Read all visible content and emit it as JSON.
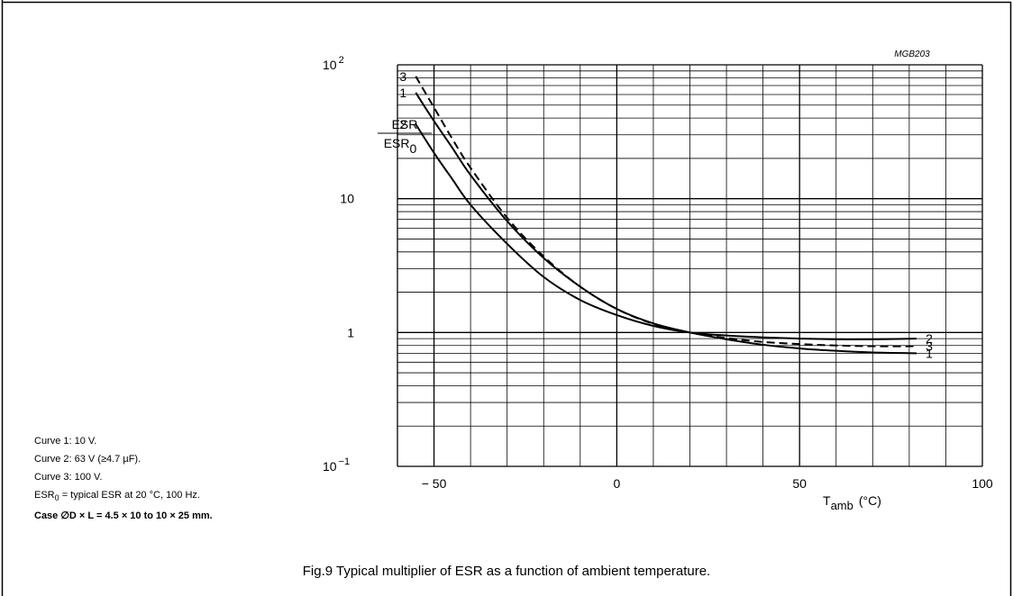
{
  "figure_id": "MGB203",
  "caption": "Fig.9  Typical multiplier of ESR as a function of ambient temperature.",
  "notes": {
    "curve1": "Curve 1: 10 V.",
    "curve2": "Curve 2: 63 V (≥4.7 µF).",
    "curve3": "Curve 3: 100 V.",
    "esr0_label": "ESR",
    "esr0_sub": "0",
    "esr0_rest": " = typical ESR at 20 °C, 100 Hz.",
    "case": "Case ∅D × L = 4.5 × 10 to 10 × 25 mm"
  },
  "chart_data": {
    "type": "line",
    "title": "",
    "ylabel_num": "ESR",
    "ylabel_den": "ESR",
    "ylabel_den_sub": "0",
    "xlabel": "T",
    "xlabel_sub": "amb",
    "xlabel_unit": "(°C)",
    "x_unit_sup": "o",
    "xlim": [
      -60,
      100
    ],
    "ylim": [
      0.1,
      100
    ],
    "y_scale": "log",
    "grid": true,
    "x_ticks": [
      {
        "value": -50,
        "label": "− 50"
      },
      {
        "value": 0,
        "label": "0"
      },
      {
        "value": 50,
        "label": "50"
      },
      {
        "value": 100,
        "label": "100"
      }
    ],
    "y_ticks": [
      {
        "value": 100,
        "base": "10",
        "exp": "2"
      },
      {
        "value": 10,
        "base": "10",
        "exp": ""
      },
      {
        "value": 1,
        "base": "1",
        "exp": ""
      },
      {
        "value": 0.1,
        "base": "10",
        "exp": "−1"
      }
    ],
    "series": [
      {
        "name": "1",
        "dashed": false,
        "x": [
          -55,
          -50,
          -45,
          -40,
          -30,
          -20,
          -10,
          0,
          10,
          20,
          30,
          40,
          50,
          60,
          70,
          82
        ],
        "y": [
          62,
          38,
          24,
          15,
          6.8,
          3.6,
          2.2,
          1.5,
          1.17,
          1.0,
          0.89,
          0.81,
          0.76,
          0.73,
          0.71,
          0.7
        ]
      },
      {
        "name": "2",
        "dashed": false,
        "x": [
          -55,
          -50,
          -45,
          -40,
          -30,
          -20,
          -10,
          0,
          10,
          20,
          30,
          40,
          50,
          60,
          70,
          82
        ],
        "y": [
          36,
          22,
          14,
          9,
          4.6,
          2.6,
          1.75,
          1.35,
          1.12,
          1.0,
          0.95,
          0.92,
          0.9,
          0.89,
          0.89,
          0.9
        ]
      },
      {
        "name": "3",
        "dashed": true,
        "x": [
          -55,
          -50,
          -45,
          -40,
          -30,
          -20,
          -10,
          0,
          10,
          20,
          30,
          40,
          50,
          60,
          70,
          82
        ],
        "y": [
          82,
          48,
          28,
          17,
          7.2,
          3.7,
          2.2,
          1.5,
          1.16,
          1.0,
          0.91,
          0.85,
          0.82,
          0.8,
          0.79,
          0.79
        ]
      }
    ]
  }
}
